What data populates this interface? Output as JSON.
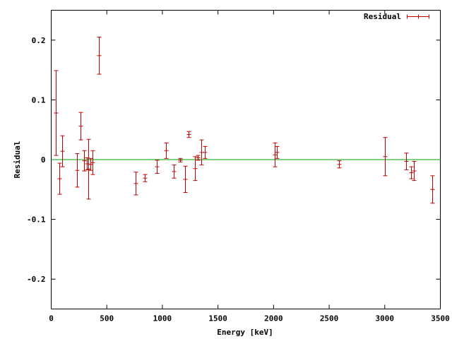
{
  "chart_data": {
    "type": "scatter",
    "xlabel": "Energy [keV]",
    "ylabel": "Residual",
    "xlim": [
      0,
      3500
    ],
    "ylim": [
      -0.25,
      0.25
    ],
    "x_ticks": [
      0,
      500,
      1000,
      1500,
      2000,
      2500,
      3000,
      3500
    ],
    "x_tick_labels": [
      "0",
      "500",
      "1000",
      "1500",
      "2000",
      "2500",
      "3000",
      "3500"
    ],
    "y_ticks": [
      -0.2,
      -0.1,
      0,
      0.1,
      0.2
    ],
    "y_tick_labels": [
      "-0.2",
      "-0.1",
      "0",
      "0.1",
      "0.2"
    ],
    "grid": false,
    "legend_position": "top-right",
    "reference_line": {
      "y": 0,
      "color": "#00a000"
    },
    "series": [
      {
        "name": "Residual",
        "color": "#c00000",
        "style": "errorbars",
        "points": [
          {
            "x": 40,
            "y": 0.078,
            "err": 0.071
          },
          {
            "x": 70,
            "y": -0.032,
            "err": 0.026
          },
          {
            "x": 100,
            "y": 0.014,
            "err": 0.026
          },
          {
            "x": 230,
            "y": -0.018,
            "err": 0.028
          },
          {
            "x": 265,
            "y": 0.056,
            "err": 0.023
          },
          {
            "x": 295,
            "y": -0.002,
            "err": 0.017
          },
          {
            "x": 320,
            "y": -0.007,
            "err": 0.01
          },
          {
            "x": 335,
            "y": -0.016,
            "err": 0.05
          },
          {
            "x": 350,
            "y": -0.008,
            "err": 0.01
          },
          {
            "x": 370,
            "y": -0.005,
            "err": 0.02
          },
          {
            "x": 430,
            "y": 0.174,
            "err": 0.031
          },
          {
            "x": 760,
            "y": -0.04,
            "err": 0.019
          },
          {
            "x": 840,
            "y": -0.031,
            "err": 0.006
          },
          {
            "x": 950,
            "y": -0.012,
            "err": 0.011
          },
          {
            "x": 1030,
            "y": 0.015,
            "err": 0.013
          },
          {
            "x": 1100,
            "y": -0.02,
            "err": 0.011
          },
          {
            "x": 1160,
            "y": -0.001,
            "err": 0.003
          },
          {
            "x": 1205,
            "y": -0.033,
            "err": 0.022
          },
          {
            "x": 1235,
            "y": 0.042,
            "err": 0.005
          },
          {
            "x": 1290,
            "y": -0.015,
            "err": 0.02
          },
          {
            "x": 1320,
            "y": 0.003,
            "err": 0.004
          },
          {
            "x": 1350,
            "y": 0.012,
            "err": 0.021
          },
          {
            "x": 1380,
            "y": 0.012,
            "err": 0.01
          },
          {
            "x": 2010,
            "y": 0.008,
            "err": 0.02
          },
          {
            "x": 2030,
            "y": 0.012,
            "err": 0.01
          },
          {
            "x": 2590,
            "y": -0.008,
            "err": 0.006
          },
          {
            "x": 3000,
            "y": 0.005,
            "err": 0.032
          },
          {
            "x": 3190,
            "y": -0.003,
            "err": 0.014
          },
          {
            "x": 3235,
            "y": -0.022,
            "err": 0.01
          },
          {
            "x": 3260,
            "y": -0.019,
            "err": 0.016
          },
          {
            "x": 3430,
            "y": -0.05,
            "err": 0.023
          }
        ]
      }
    ]
  }
}
